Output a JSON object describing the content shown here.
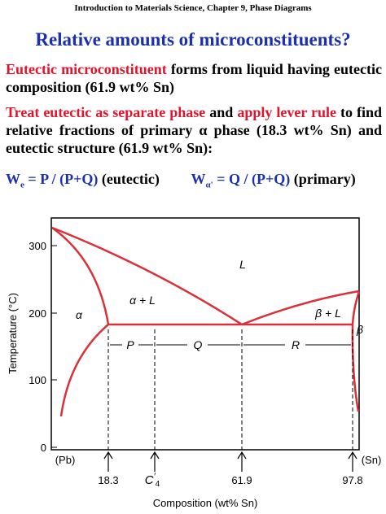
{
  "header": "Introduction to Materials Science, Chapter 9, Phase Diagrams",
  "title": "Relative amounts of microconstituents?",
  "paragraphs": [
    [
      "Eutectic microconstituent",
      " forms from liquid having eutectic composition  (61.9 wt% Sn)"
    ],
    [
      "Treat eutectic as separate phase",
      " and ",
      "apply lever rule",
      " to find relative fractions of primary α phase (18.3 wt% Sn) and eutectic structure (61.9 wt% Sn):"
    ]
  ],
  "formulas": [
    {
      "symbol": "W",
      "sub": "e",
      "expr": " = P / (P+Q)",
      "note": "(eutectic)"
    },
    {
      "symbol": "W",
      "sub": "α'",
      "expr": " = Q / (P+Q)",
      "note": "(primary)"
    }
  ],
  "diagram": {
    "y_axis_title": "Temperature (°C)",
    "y_ticks": [
      "0",
      "100",
      "200",
      "300"
    ],
    "x_axis_title": "Composition (wt% Sn)",
    "x_ends": [
      "(Pb)",
      "(Sn)"
    ],
    "x_marks": [
      "18.3",
      "C",
      "61.9",
      "97.8"
    ],
    "c_prime_sub": "4",
    "regions": [
      "L",
      "α + L",
      "α",
      "β + L",
      "β"
    ],
    "segments": [
      "P",
      "Q",
      "R"
    ]
  }
}
